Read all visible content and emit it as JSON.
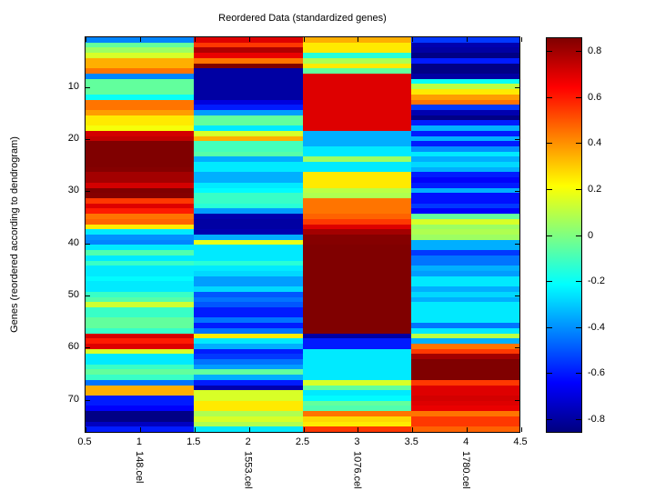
{
  "figure": {
    "background": "#ffffff",
    "axis_color": "#000000",
    "text_color": "#000000"
  },
  "chart_data": {
    "type": "heatmap",
    "title": "Reordered Data (standardized genes)",
    "ylabel": "Genes (reordered according to dendrogram)",
    "xlabel": "",
    "colormap": "jet",
    "columns": [
      "148.cel",
      "1553.cel",
      "1076.cel",
      "1780.cel"
    ],
    "x_ticks": [
      "0.5",
      "1",
      "1.5",
      "2",
      "2.5",
      "3",
      "3.5",
      "4",
      "4.5"
    ],
    "x_tick_values": [
      0.5,
      1,
      1.5,
      2,
      2.5,
      3,
      3.5,
      4,
      4.5
    ],
    "x_range": [
      0.5,
      4.5
    ],
    "y_ticks": [
      10,
      20,
      30,
      40,
      50,
      60,
      70
    ],
    "n_rows": 76,
    "color_range": [
      -0.86,
      0.86
    ],
    "colorbar_ticks": [
      "0.8",
      "0.6",
      "0.4",
      "0.2",
      "0",
      "-0.2",
      "-0.4",
      "-0.6",
      "-0.8"
    ],
    "colorbar_tick_values": [
      0.8,
      0.6,
      0.4,
      0.2,
      0,
      -0.2,
      -0.4,
      -0.6,
      -0.8
    ],
    "values": [
      [
        -0.42,
        0.7,
        0.35,
        -0.55
      ],
      [
        -0.05,
        0.55,
        0.25,
        -0.78
      ],
      [
        0.05,
        0.78,
        0.25,
        -0.8
      ],
      [
        0.15,
        0.68,
        -0.15,
        -0.85
      ],
      [
        0.35,
        0.45,
        0.08,
        -0.6
      ],
      [
        0.35,
        0.86,
        0.25,
        -0.85
      ],
      [
        0.45,
        -0.8,
        -0.05,
        -0.85
      ],
      [
        -0.42,
        -0.8,
        0.7,
        -0.8
      ],
      [
        -0.05,
        -0.8,
        0.7,
        -0.2
      ],
      [
        -0.05,
        -0.8,
        0.7,
        0.1
      ],
      [
        -0.05,
        -0.8,
        0.7,
        0.25
      ],
      [
        -0.2,
        -0.8,
        0.7,
        0.38
      ],
      [
        0.45,
        -0.7,
        0.7,
        0.45
      ],
      [
        0.45,
        -0.6,
        0.7,
        -0.55
      ],
      [
        0.38,
        -0.38,
        0.7,
        -0.78
      ],
      [
        0.25,
        -0.05,
        0.7,
        -0.85
      ],
      [
        0.25,
        -0.05,
        0.7,
        -0.6
      ],
      [
        0.2,
        -0.25,
        0.7,
        -0.35
      ],
      [
        0.72,
        0.15,
        -0.35,
        -0.6
      ],
      [
        0.75,
        0.35,
        -0.35,
        -0.35
      ],
      [
        0.88,
        -0.1,
        -0.35,
        -0.6
      ],
      [
        0.88,
        -0.1,
        -0.25,
        -0.4
      ],
      [
        0.88,
        -0.07,
        -0.25,
        -0.25
      ],
      [
        0.88,
        -0.35,
        0.05,
        -0.35
      ],
      [
        0.88,
        -0.25,
        -0.25,
        -0.28
      ],
      [
        0.85,
        -0.25,
        -0.25,
        -0.35
      ],
      [
        0.8,
        -0.35,
        0.25,
        -0.6
      ],
      [
        0.8,
        -0.35,
        0.25,
        -0.65
      ],
      [
        0.72,
        -0.25,
        0.25,
        -0.6
      ],
      [
        0.88,
        -0.22,
        0.1,
        -0.35
      ],
      [
        0.85,
        -0.12,
        0.08,
        -0.62
      ],
      [
        0.55,
        -0.12,
        0.45,
        -0.62
      ],
      [
        0.7,
        -0.15,
        0.45,
        -0.55
      ],
      [
        0.6,
        -0.38,
        0.45,
        -0.65
      ],
      [
        0.45,
        -0.78,
        0.48,
        -0.05
      ],
      [
        0.48,
        -0.8,
        0.55,
        0.15
      ],
      [
        0.25,
        -0.8,
        0.7,
        0.05
      ],
      [
        -0.25,
        -0.78,
        0.8,
        0.08
      ],
      [
        -0.4,
        -0.35,
        0.85,
        0.05
      ],
      [
        -0.42,
        0.18,
        0.85,
        -0.35
      ],
      [
        -0.25,
        -0.25,
        0.9,
        -0.35
      ],
      [
        -0.08,
        -0.25,
        0.9,
        -0.55
      ],
      [
        -0.25,
        -0.25,
        0.9,
        -0.45
      ],
      [
        -0.12,
        -0.15,
        0.9,
        -0.45
      ],
      [
        -0.25,
        -0.25,
        0.9,
        -0.35
      ],
      [
        -0.25,
        -0.28,
        0.9,
        -0.38
      ],
      [
        -0.22,
        -0.38,
        0.9,
        -0.25
      ],
      [
        -0.25,
        -0.38,
        0.9,
        -0.25
      ],
      [
        -0.25,
        -0.28,
        0.9,
        -0.35
      ],
      [
        -0.12,
        -0.5,
        0.9,
        -0.28
      ],
      [
        -0.07,
        -0.45,
        0.9,
        -0.35
      ],
      [
        0.13,
        -0.5,
        0.9,
        -0.25
      ],
      [
        -0.12,
        -0.6,
        0.9,
        -0.25
      ],
      [
        -0.12,
        -0.6,
        0.9,
        -0.25
      ],
      [
        -0.05,
        -0.45,
        0.9,
        -0.25
      ],
      [
        -0.05,
        -0.6,
        0.9,
        -0.45
      ],
      [
        -0.12,
        -0.45,
        0.9,
        -0.25
      ],
      [
        0.72,
        0.25,
        -0.8,
        0.1
      ],
      [
        0.6,
        -0.25,
        -0.6,
        -0.35
      ],
      [
        0.7,
        -0.35,
        -0.6,
        0.45
      ],
      [
        0.15,
        -0.6,
        -0.25,
        0.55
      ],
      [
        -0.25,
        -0.55,
        -0.25,
        0.8
      ],
      [
        -0.25,
        -0.45,
        -0.25,
        0.88
      ],
      [
        -0.12,
        -0.38,
        -0.25,
        0.88
      ],
      [
        -0.05,
        -0.05,
        -0.25,
        0.9
      ],
      [
        -0.12,
        -0.35,
        -0.25,
        0.88
      ],
      [
        -0.45,
        -0.6,
        0.15,
        0.55
      ],
      [
        0.35,
        -0.78,
        -0.05,
        0.7
      ],
      [
        0.35,
        0.15,
        -0.25,
        0.7
      ],
      [
        -0.6,
        0.15,
        -0.22,
        0.72
      ],
      [
        -0.6,
        0.25,
        -0.05,
        0.7
      ],
      [
        -0.65,
        0.25,
        -0.08,
        0.68
      ],
      [
        -0.85,
        0.08,
        0.45,
        0.45
      ],
      [
        -0.85,
        0.15,
        0.28,
        0.55
      ],
      [
        -0.75,
        0.08,
        0.25,
        0.55
      ],
      [
        -0.6,
        -0.25,
        0.55,
        0.48
      ]
    ]
  }
}
